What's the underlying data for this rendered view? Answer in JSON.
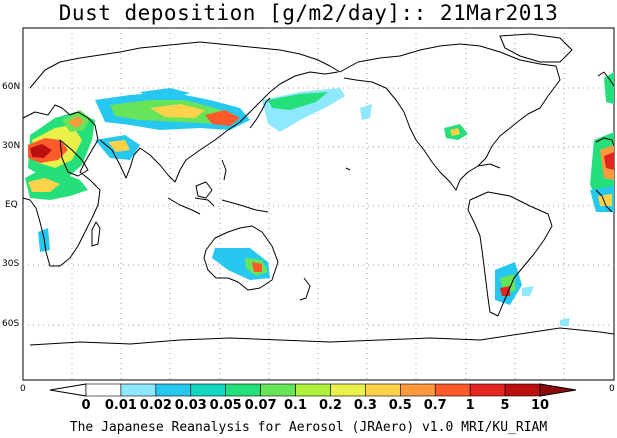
{
  "title": "Dust deposition [g/m2/day]:: 21Mar2013",
  "footer": "The Japanese Reanalysis for Aerosol (JRAero) v1.0 MRI/KU_RIAM",
  "latitude_labels": [
    "60N",
    "30N",
    "EQ",
    "30S",
    "60S"
  ],
  "axis_zero_left": "0",
  "axis_zero_right": "0",
  "colorbar": {
    "labels": [
      "0",
      "0.01",
      "0.02",
      "0.03",
      "0.05",
      "0.07",
      "0.1",
      "0.2",
      "0.3",
      "0.5",
      "0.7",
      "1",
      "5",
      "10"
    ],
    "colors": [
      "#ffffff",
      "#ffffff",
      "#8ee8ff",
      "#26c8f0",
      "#12d8c0",
      "#25e07a",
      "#66e45a",
      "#aef03a",
      "#e8f04a",
      "#ffd24a",
      "#ff9a3c",
      "#ff5a2a",
      "#e52620",
      "#bc1010",
      "#8c0a0a"
    ]
  },
  "colors": {
    "coast": "#000000",
    "grid": "#9a9a9a",
    "frame": "#000000"
  }
}
